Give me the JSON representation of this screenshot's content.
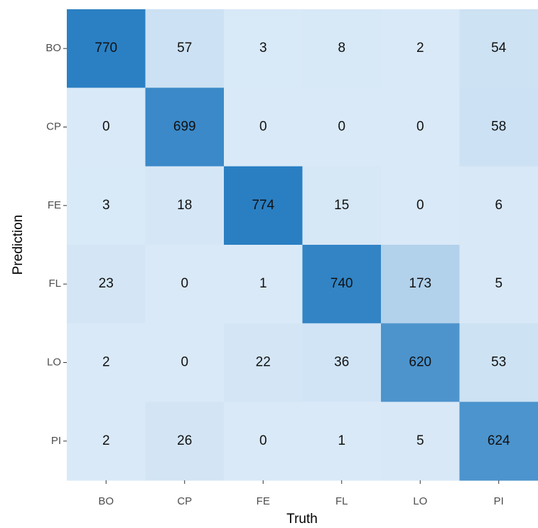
{
  "chart_data": {
    "type": "heatmap",
    "x_label": "Truth",
    "y_label": "Prediction",
    "x_categories": [
      "BO",
      "CP",
      "FE",
      "FL",
      "LO",
      "PI"
    ],
    "y_categories": [
      "BO",
      "CP",
      "FE",
      "FL",
      "LO",
      "PI"
    ],
    "values": [
      [
        770,
        57,
        3,
        8,
        2,
        54
      ],
      [
        0,
        699,
        0,
        0,
        0,
        58
      ],
      [
        3,
        18,
        774,
        15,
        0,
        6
      ],
      [
        23,
        0,
        1,
        740,
        173,
        5
      ],
      [
        2,
        0,
        22,
        36,
        620,
        53
      ],
      [
        2,
        26,
        0,
        1,
        5,
        624
      ]
    ],
    "low_color": "#d9e9f7",
    "high_color": "#2a7fc3"
  }
}
